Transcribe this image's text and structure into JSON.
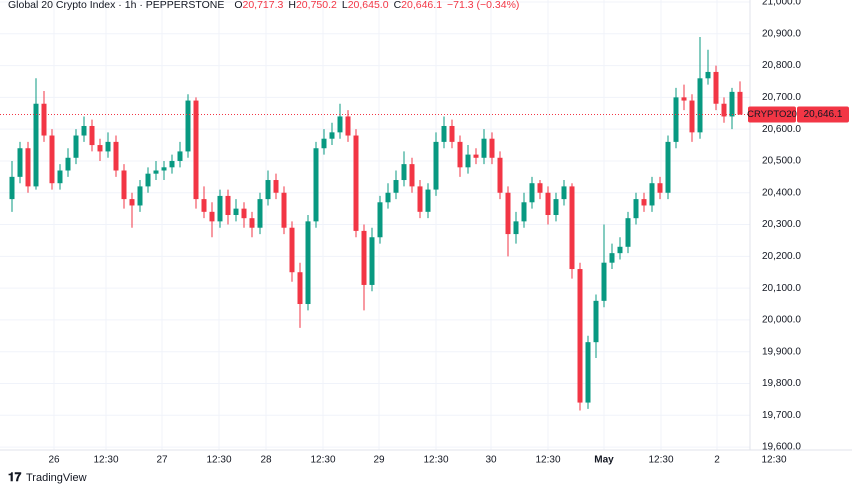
{
  "chart_data": {
    "type": "candlestick",
    "title": "Global 20 Crypto Index · 1h · PEPPERSTONE",
    "ohlc_legend": [
      {
        "key": "O",
        "label": "20,717.3"
      },
      {
        "key": "H",
        "label": "20,750.2"
      },
      {
        "key": "L",
        "label": "20,645.0"
      },
      {
        "key": "C",
        "label": "20,646.1"
      }
    ],
    "change_label": "−71.3 (−0.34%)",
    "symbol_tag": "CRYPTO20",
    "last_price": {
      "value": 20646.1,
      "label": "20,646.1"
    },
    "up_color": "#089981",
    "down_color": "#f23645",
    "open": [
      20380,
      20450,
      20540,
      20420,
      20680,
      20580,
      20430,
      20470,
      20510,
      20580,
      20610,
      20550,
      20530,
      20560,
      20470,
      20380,
      20360,
      20420,
      20460,
      20470,
      20480,
      20500,
      20530,
      20690,
      20380,
      20340,
      20310,
      20390,
      20330,
      20350,
      20320,
      20290,
      20380,
      20440,
      20400,
      20290,
      20150,
      20050,
      20310,
      20540,
      20570,
      20590,
      20640,
      20580,
      20280,
      20110,
      20260,
      20370,
      20400,
      20440,
      20490,
      20420,
      20340,
      20410,
      20560,
      20610,
      20560,
      20480,
      20520,
      20510,
      20570,
      20510,
      20400,
      20270,
      20310,
      20370,
      20430,
      20400,
      20330,
      20380,
      20420,
      20160,
      19740,
      19930,
      20060,
      20180,
      20210,
      20230,
      20320,
      20380,
      20360,
      20430,
      20400,
      20560,
      20700,
      20690,
      20590,
      20760,
      20780,
      20680,
      20640,
      20717.3
    ],
    "high": [
      20500,
      20560,
      20560,
      20760,
      20720,
      20600,
      20490,
      20540,
      20600,
      20640,
      20630,
      20570,
      20590,
      20580,
      20490,
      20400,
      20440,
      20480,
      20500,
      20500,
      20520,
      20560,
      20710,
      20700,
      20420,
      20370,
      20410,
      20410,
      20380,
      20370,
      20340,
      20400,
      20470,
      20460,
      20420,
      20310,
      20180,
      20330,
      20560,
      20600,
      20620,
      20680,
      20660,
      20600,
      20300,
      20290,
      20390,
      20430,
      20470,
      20530,
      20510,
      20440,
      20430,
      20590,
      20640,
      20630,
      20580,
      20550,
      20540,
      20600,
      20590,
      20530,
      20420,
      20340,
      20400,
      20450,
      20440,
      20420,
      20400,
      20440,
      20430,
      20180,
      19950,
      20080,
      20300,
      20240,
      20260,
      20340,
      20400,
      20400,
      20450,
      20450,
      20580,
      20730,
      20740,
      20710,
      20890,
      20850,
      20800,
      20700,
      20730,
      20750.2
    ],
    "low": [
      20340,
      20430,
      20400,
      20410,
      20560,
      20410,
      20410,
      20450,
      20490,
      20560,
      20530,
      20500,
      20510,
      20450,
      20350,
      20290,
      20340,
      20400,
      20440,
      20440,
      20460,
      20480,
      20510,
      20350,
      20320,
      20260,
      20290,
      20300,
      20310,
      20290,
      20260,
      20270,
      20360,
      20380,
      20270,
      20120,
      19975,
      20030,
      20290,
      20520,
      20550,
      20570,
      20560,
      20260,
      20030,
      20090,
      20240,
      20350,
      20380,
      20420,
      20400,
      20320,
      20320,
      20390,
      20540,
      20540,
      20450,
      20460,
      20490,
      20490,
      20490,
      20380,
      20200,
      20240,
      20290,
      20350,
      20380,
      20300,
      20310,
      20360,
      20130,
      19715,
      19720,
      19880,
      20040,
      20160,
      20190,
      20210,
      20300,
      20340,
      20340,
      20380,
      20380,
      20540,
      20660,
      20560,
      20570,
      20740,
      20660,
      20620,
      20600,
      20645.0
    ],
    "close": [
      20450,
      20540,
      20420,
      20680,
      20580,
      20430,
      20470,
      20510,
      20580,
      20610,
      20550,
      20530,
      20560,
      20470,
      20380,
      20360,
      20420,
      20460,
      20470,
      20480,
      20500,
      20530,
      20690,
      20380,
      20340,
      20310,
      20390,
      20330,
      20350,
      20320,
      20290,
      20380,
      20440,
      20400,
      20290,
      20150,
      20050,
      20310,
      20540,
      20570,
      20590,
      20640,
      20580,
      20280,
      20110,
      20260,
      20370,
      20400,
      20440,
      20490,
      20420,
      20340,
      20410,
      20560,
      20610,
      20560,
      20480,
      20520,
      20510,
      20570,
      20510,
      20400,
      20270,
      20310,
      20370,
      20430,
      20400,
      20330,
      20380,
      20420,
      20160,
      19740,
      19930,
      20060,
      20180,
      20210,
      20230,
      20320,
      20380,
      20360,
      20430,
      20400,
      20560,
      20700,
      20690,
      20590,
      20760,
      20780,
      20680,
      20640,
      20717.3,
      20646.1
    ],
    "xlim": [
      -1.5,
      92.25
    ],
    "xticks": [
      {
        "value": 5.25,
        "label": "26"
      },
      {
        "value": 11.75,
        "label": "12:30"
      },
      {
        "value": 18.75,
        "label": "27"
      },
      {
        "value": 25.875,
        "label": "12:30"
      },
      {
        "value": 31.75,
        "label": "28"
      },
      {
        "value": 38.875,
        "label": "12:30"
      },
      {
        "value": 45.875,
        "label": "29"
      },
      {
        "value": 53,
        "label": "12:30"
      },
      {
        "value": 59.875,
        "label": "30"
      },
      {
        "value": 67,
        "label": "12:30"
      },
      {
        "value": 74,
        "label": "May"
      },
      {
        "value": 81.125,
        "label": "12:30"
      },
      {
        "value": 88.125,
        "label": "2"
      },
      {
        "value": 95.25,
        "label": "12:30"
      }
    ],
    "ylim": [
      19590.8,
      21006.3
    ],
    "yticks": [
      {
        "value": 19600,
        "label": "19,600.0"
      },
      {
        "value": 19700,
        "label": "19,700.0"
      },
      {
        "value": 19800,
        "label": "19,800.0"
      },
      {
        "value": 19900,
        "label": "19,900.0"
      },
      {
        "value": 20000,
        "label": "20,000.0"
      },
      {
        "value": 20100,
        "label": "20,100.0"
      },
      {
        "value": 20200,
        "label": "20,200.0"
      },
      {
        "value": 20300,
        "label": "20,300.0"
      },
      {
        "value": 20400,
        "label": "20,400.0"
      },
      {
        "value": 20500,
        "label": "20,500.0"
      },
      {
        "value": 20600,
        "label": "20,600.0"
      },
      {
        "value": 20700,
        "label": "20,700.0"
      },
      {
        "value": 20800,
        "label": "20,800.0"
      },
      {
        "value": 20900,
        "label": "20,900.0"
      },
      {
        "value": 21000,
        "label": "21,000.0"
      }
    ],
    "grid": true,
    "brand": "TradingView"
  }
}
